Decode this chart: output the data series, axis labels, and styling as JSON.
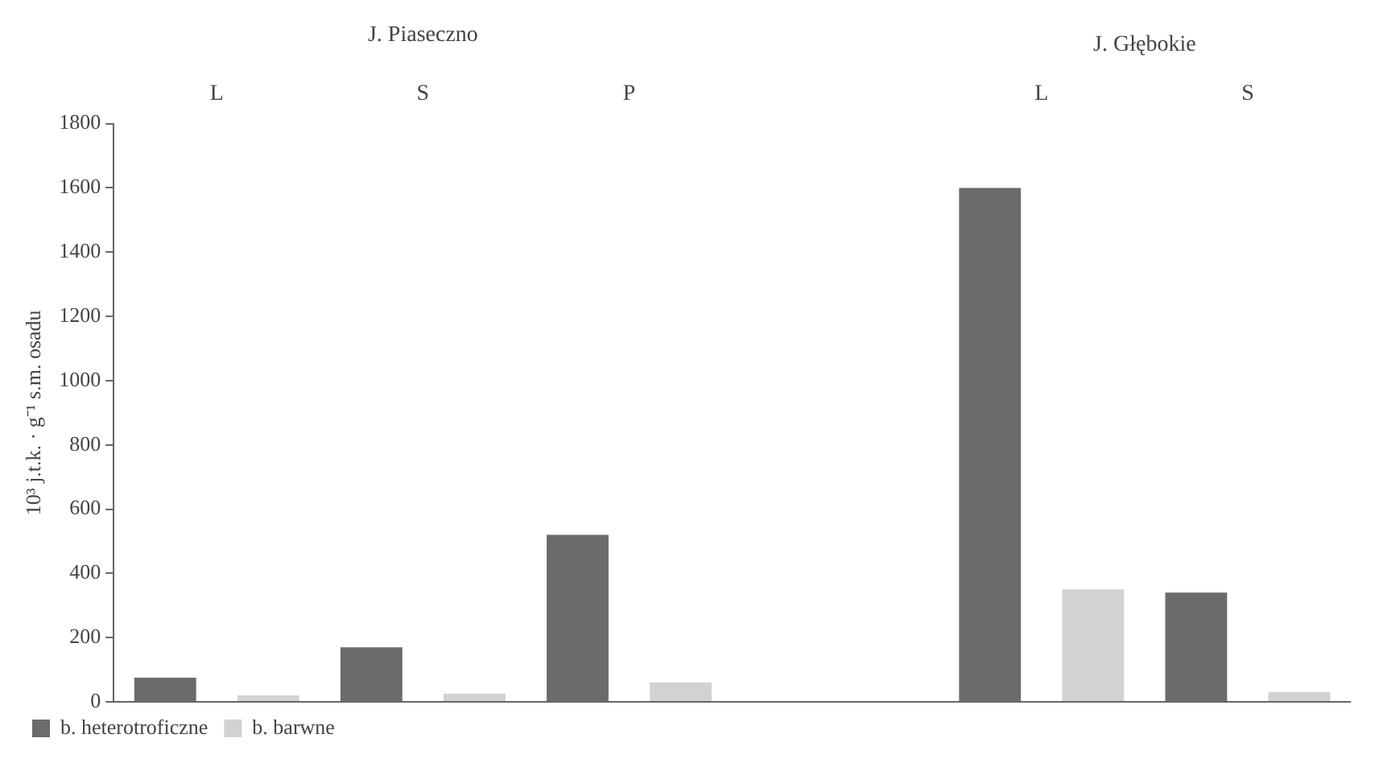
{
  "chart_data": {
    "type": "bar",
    "categories": [
      "L",
      "S",
      "P",
      null,
      "L",
      "S"
    ],
    "series": [
      {
        "name": "b. heterotroficzne",
        "color": "#6b6b6b",
        "values": [
          75,
          170,
          520,
          null,
          1600,
          340
        ]
      },
      {
        "name": "b. barwne",
        "color": "#d2d2d2",
        "values": [
          20,
          25,
          60,
          null,
          350,
          30
        ]
      }
    ],
    "ylabel": "10³ j.t.k. · g⁻¹ s.m. osadu",
    "ylim": [
      0,
      1800
    ],
    "yticks": [
      0,
      200,
      400,
      600,
      800,
      1000,
      1200,
      1400,
      1600,
      1800
    ],
    "annotations": [
      "J. Piaseczno",
      "J. Głębokie"
    ],
    "grid": false,
    "legend": "bottom"
  }
}
